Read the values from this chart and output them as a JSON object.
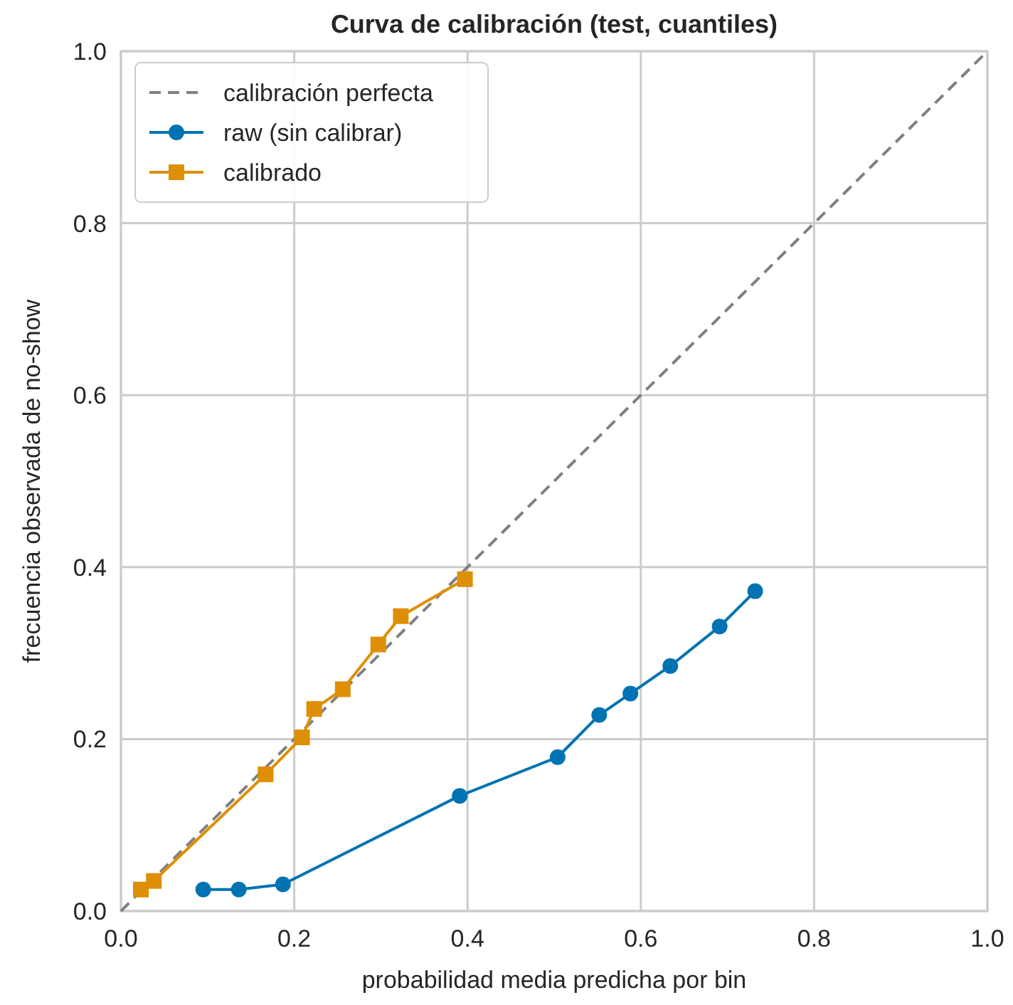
{
  "chart_data": {
    "type": "line",
    "title": "Curva de calibración (test, cuantiles)",
    "xlabel": "probabilidad media predicha por bin",
    "ylabel": "frecuencia observada de no-show",
    "xlim": [
      0,
      1
    ],
    "ylim": [
      0,
      1
    ],
    "xticks": [
      {
        "value": 0,
        "label": "0.0"
      },
      0.2,
      0.4,
      0.6,
      0.8,
      {
        "value": 1,
        "label": "1.0"
      }
    ],
    "yticks": [
      {
        "value": 0,
        "label": "0.0"
      },
      0.2,
      0.4,
      0.6,
      0.8,
      {
        "value": 1,
        "label": "1.0"
      }
    ],
    "grid": true,
    "legend": "top left",
    "series": [
      {
        "name": "calibración perfecta",
        "color": "#808080",
        "x": [
          0,
          1
        ],
        "values": [
          0,
          1
        ],
        "marker": "none",
        "line_style": "dashed"
      },
      {
        "name": "raw (sin calibrar)",
        "color": "#0173b2",
        "x": [
          0.095,
          0.136,
          0.187,
          0.391,
          0.504,
          0.552,
          0.588,
          0.634,
          0.691,
          0.732
        ],
        "values": [
          0.025,
          0.025,
          0.031,
          0.134,
          0.179,
          0.228,
          0.253,
          0.285,
          0.331,
          0.372
        ],
        "marker": "circle",
        "line_style": "solid"
      },
      {
        "name": "calibrado",
        "color": "#de8f05",
        "x": [
          0.023,
          0.038,
          0.167,
          0.209,
          0.223,
          0.256,
          0.297,
          0.323,
          0.397
        ],
        "values": [
          0.025,
          0.035,
          0.159,
          0.202,
          0.235,
          0.258,
          0.31,
          0.343,
          0.386
        ],
        "marker": "square",
        "line_style": "solid"
      }
    ]
  }
}
